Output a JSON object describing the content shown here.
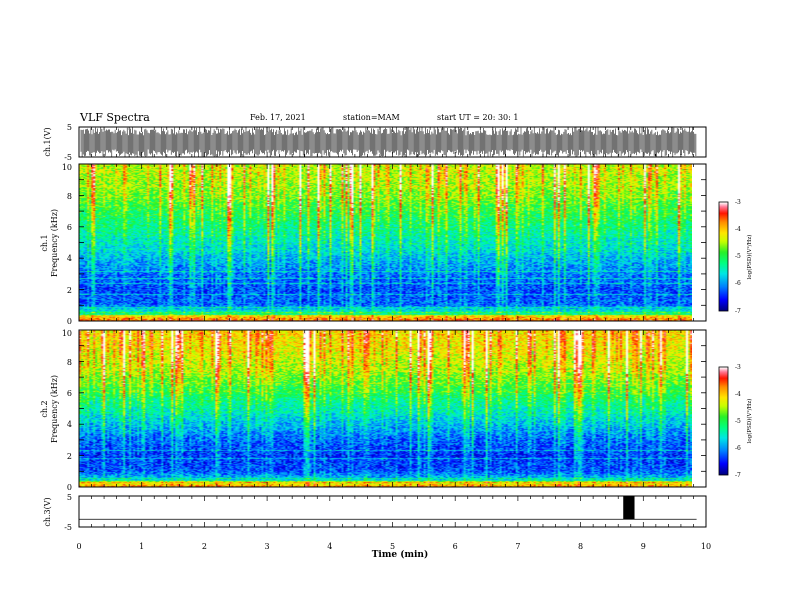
{
  "header": {
    "title": "VLF Spectra",
    "date": "Feb. 17, 2021",
    "station": "station=MAM",
    "start": "start  UT =   20: 30: 1"
  },
  "chart_data": [
    {
      "type": "line",
      "name": "ch1-waveform",
      "ylabel": "ch.1(V)",
      "ylim": [
        -5,
        5
      ],
      "yticks": [
        "5",
        "-5"
      ],
      "xlim": [
        0,
        10
      ],
      "x_extent": [
        0,
        9.85
      ],
      "description_of_values": "dense bipolar impulsive waveform spanning roughly -5 to 5 V"
    },
    {
      "type": "heatmap",
      "name": "ch1-spectrogram",
      "ylabel": "ch.1 Frequency (kHz)",
      "ylim": [
        0,
        10
      ],
      "yticks": [
        "0",
        "2",
        "4",
        "6",
        "8",
        "10"
      ],
      "xlim": [
        0,
        10
      ],
      "x_extent": [
        0,
        9.85
      ],
      "colorbar": {
        "label": "log(PSD)(V²/Hz)",
        "ticks": [
          "-3",
          "-4",
          "-5",
          "-6",
          "-7"
        ],
        "range": [
          -7,
          -3
        ]
      },
      "band_profile": [
        {
          "f_khz": 0.0,
          "logpsd": -4.4
        },
        {
          "f_khz": 0.5,
          "logpsd": -5.4
        },
        {
          "f_khz": 1.0,
          "logpsd": -6.2
        },
        {
          "f_khz": 2.0,
          "logpsd": -6.3
        },
        {
          "f_khz": 3.0,
          "logpsd": -6.1
        },
        {
          "f_khz": 4.0,
          "logpsd": -5.8
        },
        {
          "f_khz": 5.0,
          "logpsd": -5.5
        },
        {
          "f_khz": 6.0,
          "logpsd": -5.2
        },
        {
          "f_khz": 7.0,
          "logpsd": -4.9
        },
        {
          "f_khz": 8.0,
          "logpsd": -4.6
        },
        {
          "f_khz": 9.0,
          "logpsd": -4.4
        },
        {
          "f_khz": 10.0,
          "logpsd": -4.3
        }
      ]
    },
    {
      "type": "heatmap",
      "name": "ch2-spectrogram",
      "ylabel": "ch.2 Frequency (kHz)",
      "ylim": [
        0,
        10
      ],
      "yticks": [
        "0",
        "2",
        "4",
        "6",
        "8",
        "10"
      ],
      "xlim": [
        0,
        10
      ],
      "x_extent": [
        0,
        9.85
      ],
      "colorbar": {
        "label": "log(PSD)(V²/Hz)",
        "ticks": [
          "-3",
          "-4",
          "-5",
          "-6",
          "-7"
        ],
        "range": [
          -7,
          -3
        ]
      },
      "band_profile": [
        {
          "f_khz": 0.0,
          "logpsd": -4.6
        },
        {
          "f_khz": 0.5,
          "logpsd": -5.8
        },
        {
          "f_khz": 1.0,
          "logpsd": -6.3
        },
        {
          "f_khz": 2.0,
          "logpsd": -6.4
        },
        {
          "f_khz": 3.0,
          "logpsd": -6.2
        },
        {
          "f_khz": 4.0,
          "logpsd": -5.8
        },
        {
          "f_khz": 5.0,
          "logpsd": -5.4
        },
        {
          "f_khz": 6.0,
          "logpsd": -5.0
        },
        {
          "f_khz": 7.0,
          "logpsd": -4.6
        },
        {
          "f_khz": 8.0,
          "logpsd": -4.3
        },
        {
          "f_khz": 9.0,
          "logpsd": -4.1
        },
        {
          "f_khz": 10.0,
          "logpsd": -4.0
        }
      ]
    },
    {
      "type": "line",
      "name": "ch3-waveform",
      "ylabel": "ch.3(V)",
      "ylim": [
        -5,
        5
      ],
      "yticks": [
        "5",
        "-5"
      ],
      "xlim": [
        0,
        10
      ],
      "baseline_v": -2.5,
      "pulse": {
        "x_start": 8.68,
        "x_end": 8.86,
        "v_low": -2.5,
        "v_high": 5
      }
    }
  ],
  "x_axis": {
    "label": "Time  (min)",
    "ticks": [
      "0",
      "1",
      "2",
      "3",
      "4",
      "5",
      "6",
      "7",
      "8",
      "9",
      "10"
    ],
    "range": [
      0,
      10
    ]
  },
  "colors": {
    "cmap": [
      "#000080",
      "#0000ff",
      "#0080ff",
      "#00ffff",
      "#00ff80",
      "#00ff00",
      "#ffff00",
      "#ff8000",
      "#ff0000",
      "#ff80a0",
      "#ffffff"
    ]
  }
}
